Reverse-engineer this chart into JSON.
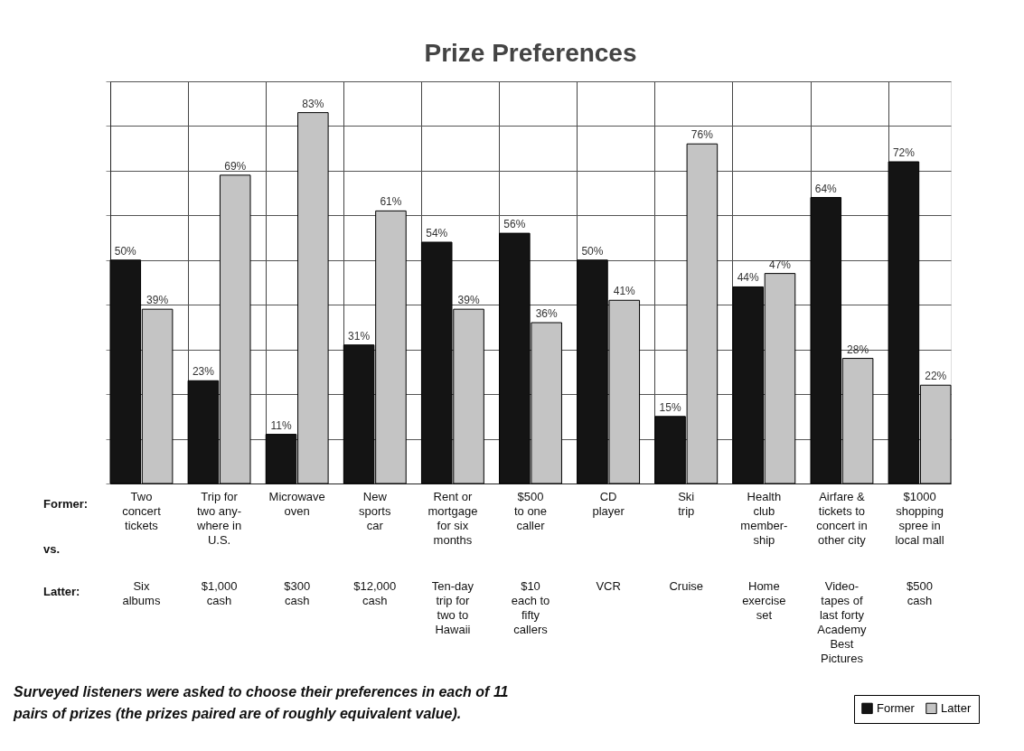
{
  "chart_data": {
    "type": "bar",
    "title": "Prize Preferences",
    "categories": [
      "Two\nconcert\ntickets",
      "Trip for\ntwo any-\nwhere in\nU.S.",
      "Microwave\noven",
      "New\nsports\ncar",
      "Rent or\nmortgage\nfor six\nmonths",
      "$500\nto one\ncaller",
      "CD\nplayer",
      "Ski\ntrip",
      "Health\nclub\nmember-\nship",
      "Airfare &\ntickets to\nconcert in\nother city",
      "$1000\nshopping\nspree in\nlocal mall"
    ],
    "series": [
      {
        "name": "Former",
        "color": "#141414",
        "values": [
          50,
          23,
          11,
          31,
          54,
          56,
          50,
          15,
          44,
          64,
          72
        ],
        "value_labels": [
          "50%",
          "23%",
          "11%",
          "31%",
          "54%",
          "56%",
          "50%",
          "15%",
          "44%",
          "64%",
          "72%"
        ]
      },
      {
        "name": "Latter",
        "color": "#c4c4c4",
        "values": [
          39,
          69,
          83,
          61,
          39,
          36,
          41,
          76,
          47,
          28,
          22
        ],
        "value_labels": [
          "39%",
          "69%",
          "83%",
          "61%",
          "39%",
          "36%",
          "41%",
          "76%",
          "47%",
          "28%",
          "22%"
        ]
      }
    ],
    "tick_labels": "x",
    "grid": true,
    "legend": "bottom right",
    "annotations": [
      "Former:",
      "vs.",
      "Latter:",
      "Six\nalbums",
      "$1,000\ncash",
      "$300\ncash",
      "$12,000\ncash",
      "Ten-day\ntrip for\ntwo to\nHawaii",
      "$10\neach to\nfifty\ncallers",
      "VCR",
      "Cruise",
      "Home\nexercise\nset",
      "Video-\ntapes of\nlast forty\nAcademy\nBest\nPictures",
      "$500\ncash",
      "Surveyed listeners were asked to choose their preferences in each of 11\npairs of prizes (the prizes paired are of roughly equivalent value)."
    ]
  }
}
